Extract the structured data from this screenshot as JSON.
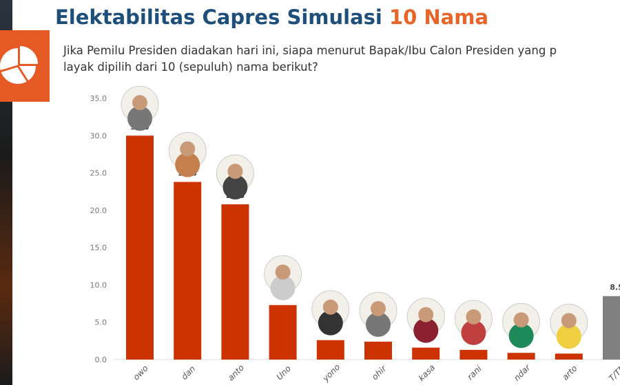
{
  "header": {
    "title_main": "Elektabilitas Capres Simulasi ",
    "title_highlight": "10 Nama",
    "question_line1": "Jika Pemilu Presiden diadakan hari ini, siapa menurut Bapak/Ibu Calon Presiden yang p",
    "question_line2": "layak dipilih dari 10 (sepuluh) nama berikut?"
  },
  "colors": {
    "bar": "#cc3300",
    "other_bar": "#808080",
    "title": "#1d4f7a",
    "accent": "#e8652a"
  },
  "logo_icon": "pie-chart-icon",
  "chart_data": {
    "type": "bar",
    "categories": [
      "owo",
      "dan",
      "anto",
      "Uno",
      "yono",
      "ohir",
      "kasa",
      "rani",
      "ndar",
      "arto",
      "T/TM"
    ],
    "values": [
      30.0,
      23.8,
      20.8,
      7.3,
      2.6,
      2.4,
      1.6,
      1.3,
      0.9,
      0.8,
      8.5
    ],
    "value_labels": [
      "30.0",
      "23.8",
      "20.8",
      "7.3",
      "2.6",
      "2.4",
      "1.6",
      "1.3",
      "0.9",
      "0.8",
      "8.5"
    ],
    "ylim": [
      0,
      35
    ],
    "yticks": [
      "0.0",
      "5.0",
      "10.0",
      "15.0",
      "20.0",
      "25.0",
      "30.0",
      "35.0"
    ],
    "grid": false,
    "avatar_colors": [
      "#777",
      "#c58050",
      "#444",
      "#ccc",
      "#333",
      "#777",
      "#8a2030",
      "#c04040",
      "#1e8a5a",
      "#f0d040"
    ]
  }
}
